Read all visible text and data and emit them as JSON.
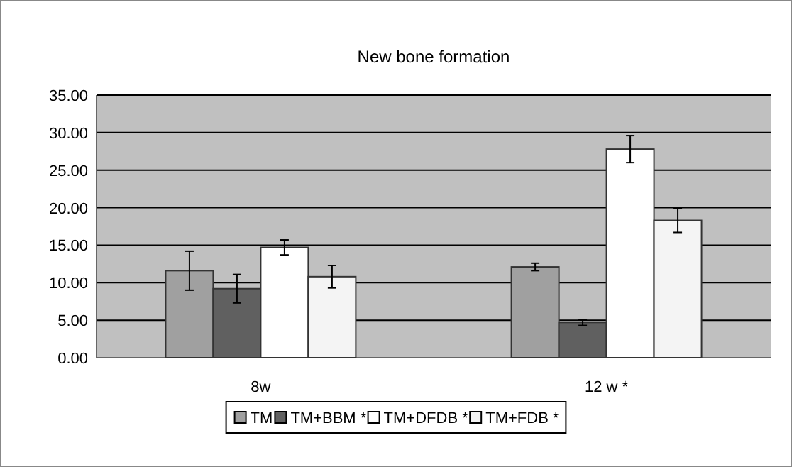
{
  "chart_data": {
    "type": "bar",
    "title": "New bone formation",
    "categories": [
      "8w",
      "12 w *"
    ],
    "series": [
      {
        "name": "TM",
        "color": "#a0a0a0",
        "values": [
          11.6,
          12.1
        ],
        "errors": [
          2.6,
          0.5
        ]
      },
      {
        "name": "TM+BBM *",
        "color": "#606060",
        "values": [
          9.2,
          4.7
        ],
        "errors": [
          1.9,
          0.4
        ]
      },
      {
        "name": "TM+DFDB *",
        "color": "#ffffff",
        "values": [
          14.7,
          27.8
        ],
        "errors": [
          1.0,
          1.8
        ]
      },
      {
        "name": "TM+FDB *",
        "color": "#f4f4f4",
        "values": [
          10.8,
          18.3
        ],
        "errors": [
          1.5,
          1.6
        ]
      }
    ],
    "ylim": [
      0,
      35
    ],
    "yticks": [
      {
        "value": 0,
        "label": "0.00"
      },
      {
        "value": 5,
        "label": "5.00"
      },
      {
        "value": 10,
        "label": "10.00"
      },
      {
        "value": 15,
        "label": "15.00"
      },
      {
        "value": 20,
        "label": "20.00"
      },
      {
        "value": 25,
        "label": "25.00"
      },
      {
        "value": 30,
        "label": "30.00"
      },
      {
        "value": 35,
        "label": "35.00"
      }
    ],
    "grid": "y",
    "legend": "bottom"
  }
}
